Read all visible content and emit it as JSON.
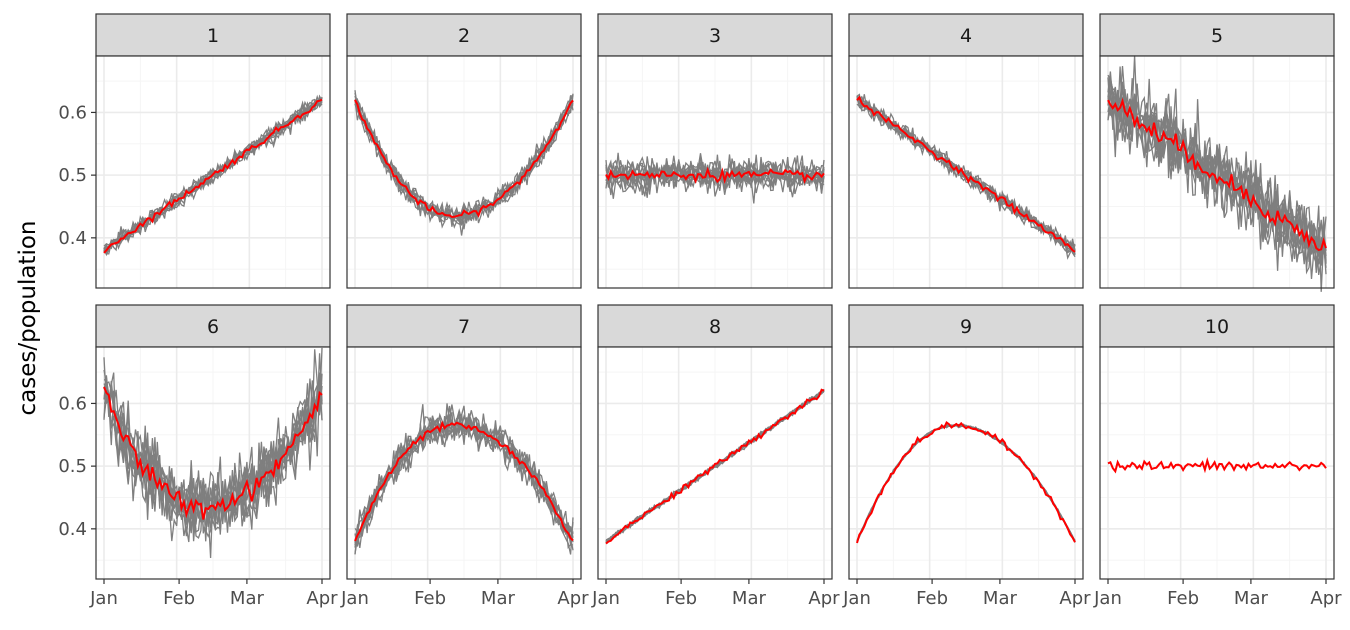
{
  "chart_data": {
    "type": "line",
    "layout": "facet_wrap",
    "ylabel": "cases/population",
    "xlabel": "",
    "x_ticks": [
      "Jan",
      "Feb",
      "Mar",
      "Apr"
    ],
    "y_ticks": [
      "0.4",
      "0.5",
      "0.6"
    ],
    "ylim": [
      0.32,
      0.69
    ],
    "grid": true,
    "colors": {
      "replicates": "#7f7f7f",
      "mean": "#ff0000",
      "strip_bg": "#d9d9d9",
      "panel_border": "#333333",
      "grid_major": "#ebebeb",
      "grid_minor": "#f5f5f5"
    },
    "facets": [
      {
        "label": "1",
        "shape": "increasing",
        "start": 0.38,
        "end": 0.62,
        "replicate_spread": 0.006
      },
      {
        "label": "2",
        "shape": "u-shape",
        "start": 0.62,
        "min": 0.435,
        "min_at": "mid-Feb",
        "end": 0.62,
        "replicate_spread": 0.008
      },
      {
        "label": "3",
        "shape": "flat",
        "level": 0.5,
        "replicate_spread": 0.012
      },
      {
        "label": "4",
        "shape": "decreasing",
        "start": 0.62,
        "end": 0.38,
        "replicate_spread": 0.006
      },
      {
        "label": "5",
        "shape": "decreasing",
        "start": 0.62,
        "end": 0.38,
        "replicate_spread": 0.028
      },
      {
        "label": "6",
        "shape": "u-shape",
        "start": 0.615,
        "min": 0.435,
        "min_at": "mid-Feb",
        "end": 0.615,
        "replicate_spread": 0.028
      },
      {
        "label": "7",
        "shape": "inverted-u",
        "start": 0.38,
        "max": 0.565,
        "max_at": "mid-Feb",
        "end": 0.38,
        "replicate_spread": 0.012
      },
      {
        "label": "8",
        "shape": "increasing",
        "start": 0.38,
        "end": 0.62,
        "replicate_spread": 0.002
      },
      {
        "label": "9",
        "shape": "inverted-u",
        "start": 0.38,
        "max": 0.565,
        "max_at": "mid-Feb",
        "end": 0.38,
        "replicate_spread": 0.001
      },
      {
        "label": "10",
        "shape": "flat",
        "level": 0.5,
        "replicate_spread": 0.0
      }
    ]
  }
}
